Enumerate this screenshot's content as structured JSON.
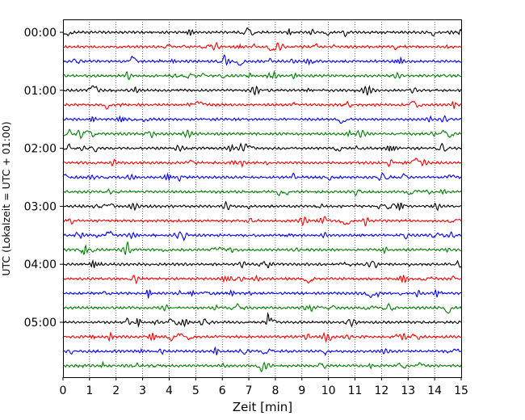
{
  "chart_data": {
    "type": "line",
    "xlabel": "Zeit  [min]",
    "ylabel": "UTC (Lokalzeit = UTC + 01:00)",
    "xlim": [
      0,
      15
    ],
    "x_ticks": [
      "0",
      "1",
      "2",
      "3",
      "4",
      "5",
      "6",
      "7",
      "8",
      "9",
      "10",
      "11",
      "12",
      "13",
      "14",
      "15"
    ],
    "y_tick_labels": [
      "00:00",
      "01:00",
      "02:00",
      "03:00",
      "04:00",
      "05:00"
    ],
    "trace_interval_minutes": 15,
    "trace_count": 24,
    "series_colors": [
      "#000000",
      "#ff0000",
      "#0000ff",
      "#008000"
    ],
    "grid": "vertical dotted at each minute"
  }
}
